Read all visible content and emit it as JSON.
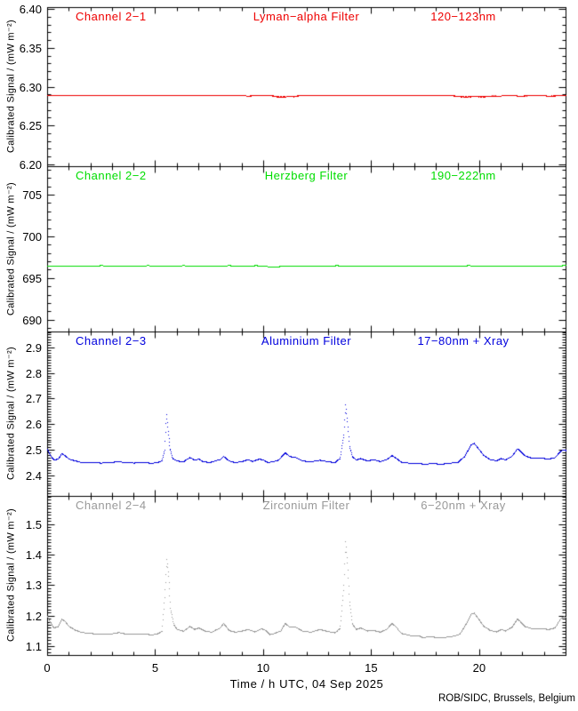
{
  "figure": {
    "background": "#ffffff",
    "axis_color": "#000000",
    "y_axis_label": "Calibrated Signal / (mW m⁻²)",
    "credit": "ROB/SIDC, Brussels, Belgium",
    "x_axis": {
      "label": "Time / h UTC, 04 Sep 2025",
      "xlim": [
        0,
        24
      ],
      "ticks": [
        0,
        5,
        10,
        15,
        20
      ],
      "tick_labels": [
        "0",
        "5",
        "10",
        "15",
        "20"
      ],
      "minor_step": 1
    }
  },
  "chart_data": [
    {
      "type": "line",
      "panel": 1,
      "channel": "Channel 2−1",
      "filter": "Lyman−alpha Filter",
      "band": "120−123nm",
      "color": "#ee0000",
      "ylim": [
        6.1975,
        6.4025
      ],
      "y_ticks": [
        6.4,
        6.35,
        6.3,
        6.25,
        6.2
      ],
      "y_tick_labels": [
        "6.40",
        "6.35",
        "6.30",
        "6.25",
        "6.20"
      ],
      "y_minor_step": 0.01,
      "noise_bands": [
        {
          "from": 9.2,
          "to": 9.5,
          "amp": 0.0009
        },
        {
          "from": 10.4,
          "to": 11.6,
          "amp": 0.0014
        },
        {
          "from": 18.8,
          "to": 21.0,
          "amp": 0.0013
        },
        {
          "from": 21.9,
          "to": 22.2,
          "amp": 0.0009
        },
        {
          "from": 23.2,
          "to": 23.5,
          "amp": 0.0009
        }
      ],
      "points": [
        [
          0,
          6.289
        ],
        [
          9.0,
          6.289
        ],
        [
          9.3,
          6.2885
        ],
        [
          9.6,
          6.289
        ],
        [
          10.4,
          6.289
        ],
        [
          10.8,
          6.2882
        ],
        [
          11.0,
          6.2878
        ],
        [
          11.3,
          6.2882
        ],
        [
          11.6,
          6.289
        ],
        [
          18.6,
          6.289
        ],
        [
          19.0,
          6.2885
        ],
        [
          19.6,
          6.288
        ],
        [
          20.2,
          6.2885
        ],
        [
          20.8,
          6.2888
        ],
        [
          21.9,
          6.2885
        ],
        [
          22.1,
          6.289
        ],
        [
          23.2,
          6.2885
        ],
        [
          23.5,
          6.289
        ],
        [
          24,
          6.289
        ]
      ]
    },
    {
      "type": "line",
      "panel": 2,
      "channel": "Channel 2−2",
      "filter": "Herzberg Filter",
      "band": "190−222nm",
      "color": "#00dd00",
      "ylim": [
        688.6,
        708.4
      ],
      "y_ticks": [
        705,
        700,
        695,
        690
      ],
      "y_tick_labels": [
        "705",
        "700",
        "695",
        "690"
      ],
      "y_minor_step": 1,
      "noise_bands": [],
      "points": [
        [
          0,
          696.5
        ],
        [
          2.4,
          696.5
        ],
        [
          2.5,
          696.58
        ],
        [
          2.6,
          696.5
        ],
        [
          4.55,
          696.5
        ],
        [
          4.65,
          696.6
        ],
        [
          4.75,
          696.5
        ],
        [
          6.2,
          696.5
        ],
        [
          6.3,
          696.58
        ],
        [
          6.4,
          696.5
        ],
        [
          8.3,
          696.5
        ],
        [
          8.4,
          696.58
        ],
        [
          8.5,
          696.5
        ],
        [
          9.55,
          696.5
        ],
        [
          9.65,
          696.6
        ],
        [
          9.75,
          696.5
        ],
        [
          10.15,
          696.48
        ],
        [
          10.25,
          696.35
        ],
        [
          10.45,
          696.32
        ],
        [
          10.7,
          696.35
        ],
        [
          10.8,
          696.48
        ],
        [
          10.9,
          696.5
        ],
        [
          13.3,
          696.5
        ],
        [
          13.4,
          696.58
        ],
        [
          13.5,
          696.5
        ],
        [
          16.5,
          696.5
        ],
        [
          19.4,
          696.5
        ],
        [
          19.5,
          696.58
        ],
        [
          19.6,
          696.5
        ],
        [
          22.0,
          696.5
        ],
        [
          23.8,
          696.5
        ],
        [
          23.9,
          696.62
        ],
        [
          24,
          696.55
        ]
      ]
    },
    {
      "type": "line",
      "panel": 3,
      "channel": "Channel 2−3",
      "filter": "Aluminium Filter",
      "band": "17−80nm + Xray",
      "color": "#0000dd",
      "ylim": [
        2.32,
        2.962
      ],
      "y_ticks": [
        2.9,
        2.8,
        2.7,
        2.6,
        2.5,
        2.4
      ],
      "y_tick_labels": [
        "2.9",
        "2.8",
        "2.7",
        "2.6",
        "2.5",
        "2.4"
      ],
      "y_minor_step": 0.01,
      "noise_bands": [],
      "points": [
        [
          0,
          2.505
        ],
        [
          0.15,
          2.478
        ],
        [
          0.3,
          2.462
        ],
        [
          0.5,
          2.466
        ],
        [
          0.65,
          2.487
        ],
        [
          0.8,
          2.48
        ],
        [
          1.0,
          2.465
        ],
        [
          1.3,
          2.458
        ],
        [
          1.6,
          2.452
        ],
        [
          2.0,
          2.451
        ],
        [
          2.5,
          2.45
        ],
        [
          3.0,
          2.452
        ],
        [
          3.3,
          2.457
        ],
        [
          3.5,
          2.452
        ],
        [
          4.0,
          2.45
        ],
        [
          4.5,
          2.452
        ],
        [
          4.8,
          2.449
        ],
        [
          5.1,
          2.452
        ],
        [
          5.3,
          2.459
        ],
        [
          5.42,
          2.5
        ],
        [
          5.5,
          2.638
        ],
        [
          5.58,
          2.575
        ],
        [
          5.68,
          2.505
        ],
        [
          5.8,
          2.468
        ],
        [
          6.0,
          2.458
        ],
        [
          6.3,
          2.455
        ],
        [
          6.6,
          2.472
        ],
        [
          6.8,
          2.461
        ],
        [
          7.0,
          2.466
        ],
        [
          7.2,
          2.456
        ],
        [
          7.5,
          2.452
        ],
        [
          8.0,
          2.464
        ],
        [
          8.15,
          2.476
        ],
        [
          8.4,
          2.458
        ],
        [
          8.7,
          2.452
        ],
        [
          9.0,
          2.456
        ],
        [
          9.3,
          2.463
        ],
        [
          9.5,
          2.456
        ],
        [
          9.8,
          2.466
        ],
        [
          10.0,
          2.462
        ],
        [
          10.2,
          2.452
        ],
        [
          10.45,
          2.456
        ],
        [
          10.7,
          2.461
        ],
        [
          11.0,
          2.49
        ],
        [
          11.2,
          2.476
        ],
        [
          11.5,
          2.471
        ],
        [
          11.8,
          2.458
        ],
        [
          12.2,
          2.455
        ],
        [
          12.6,
          2.461
        ],
        [
          13.0,
          2.455
        ],
        [
          13.3,
          2.452
        ],
        [
          13.55,
          2.468
        ],
        [
          13.72,
          2.56
        ],
        [
          13.8,
          2.676
        ],
        [
          13.88,
          2.61
        ],
        [
          13.98,
          2.515
        ],
        [
          14.1,
          2.476
        ],
        [
          14.3,
          2.462
        ],
        [
          14.5,
          2.468
        ],
        [
          14.8,
          2.458
        ],
        [
          15.1,
          2.463
        ],
        [
          15.4,
          2.456
        ],
        [
          15.7,
          2.463
        ],
        [
          15.95,
          2.479
        ],
        [
          16.1,
          2.47
        ],
        [
          16.4,
          2.453
        ],
        [
          16.8,
          2.449
        ],
        [
          17.2,
          2.448
        ],
        [
          17.5,
          2.445
        ],
        [
          17.8,
          2.449
        ],
        [
          18.2,
          2.445
        ],
        [
          18.6,
          2.449
        ],
        [
          19.0,
          2.453
        ],
        [
          19.3,
          2.474
        ],
        [
          19.6,
          2.52
        ],
        [
          19.75,
          2.528
        ],
        [
          19.9,
          2.512
        ],
        [
          20.2,
          2.479
        ],
        [
          20.5,
          2.463
        ],
        [
          20.8,
          2.459
        ],
        [
          21.0,
          2.468
        ],
        [
          21.2,
          2.462
        ],
        [
          21.5,
          2.476
        ],
        [
          21.75,
          2.506
        ],
        [
          21.9,
          2.496
        ],
        [
          22.1,
          2.479
        ],
        [
          22.4,
          2.469
        ],
        [
          22.8,
          2.469
        ],
        [
          23.2,
          2.466
        ],
        [
          23.5,
          2.471
        ],
        [
          23.75,
          2.496
        ],
        [
          23.9,
          2.502
        ],
        [
          24,
          2.498
        ]
      ]
    },
    {
      "type": "line",
      "panel": 4,
      "channel": "Channel 2−4",
      "filter": "Zirconium Filter",
      "band": "6−20nm + Xray",
      "color": "#999999",
      "ylim": [
        1.071,
        1.592
      ],
      "y_ticks": [
        1.5,
        1.4,
        1.3,
        1.2,
        1.1
      ],
      "y_tick_labels": [
        "1.5",
        "1.4",
        "1.3",
        "1.2",
        "1.1"
      ],
      "y_minor_step": 0.01,
      "noise_bands": [],
      "points": [
        [
          0,
          1.2
        ],
        [
          0.15,
          1.178
        ],
        [
          0.3,
          1.161
        ],
        [
          0.5,
          1.166
        ],
        [
          0.65,
          1.19
        ],
        [
          0.8,
          1.184
        ],
        [
          1.0,
          1.166
        ],
        [
          1.3,
          1.153
        ],
        [
          1.6,
          1.146
        ],
        [
          2.0,
          1.143
        ],
        [
          2.5,
          1.14
        ],
        [
          3.0,
          1.142
        ],
        [
          3.3,
          1.146
        ],
        [
          3.6,
          1.141
        ],
        [
          4.0,
          1.14
        ],
        [
          4.5,
          1.142
        ],
        [
          4.8,
          1.138
        ],
        [
          5.1,
          1.142
        ],
        [
          5.3,
          1.15
        ],
        [
          5.42,
          1.26
        ],
        [
          5.52,
          1.386
        ],
        [
          5.6,
          1.33
        ],
        [
          5.7,
          1.225
        ],
        [
          5.85,
          1.172
        ],
        [
          6.0,
          1.156
        ],
        [
          6.3,
          1.15
        ],
        [
          6.6,
          1.166
        ],
        [
          6.8,
          1.156
        ],
        [
          7.0,
          1.161
        ],
        [
          7.3,
          1.151
        ],
        [
          7.6,
          1.147
        ],
        [
          8.0,
          1.161
        ],
        [
          8.15,
          1.176
        ],
        [
          8.4,
          1.153
        ],
        [
          8.7,
          1.147
        ],
        [
          9.0,
          1.151
        ],
        [
          9.3,
          1.156
        ],
        [
          9.6,
          1.148
        ],
        [
          9.9,
          1.159
        ],
        [
          10.1,
          1.153
        ],
        [
          10.3,
          1.139
        ],
        [
          10.5,
          1.143
        ],
        [
          10.8,
          1.151
        ],
        [
          11.0,
          1.176
        ],
        [
          11.2,
          1.164
        ],
        [
          11.5,
          1.163
        ],
        [
          11.8,
          1.151
        ],
        [
          12.2,
          1.147
        ],
        [
          12.6,
          1.156
        ],
        [
          13.0,
          1.149
        ],
        [
          13.3,
          1.145
        ],
        [
          13.55,
          1.159
        ],
        [
          13.72,
          1.3
        ],
        [
          13.8,
          1.443
        ],
        [
          13.88,
          1.375
        ],
        [
          13.98,
          1.245
        ],
        [
          14.1,
          1.176
        ],
        [
          14.3,
          1.156
        ],
        [
          14.5,
          1.161
        ],
        [
          14.8,
          1.151
        ],
        [
          15.1,
          1.153
        ],
        [
          15.4,
          1.147
        ],
        [
          15.7,
          1.156
        ],
        [
          15.95,
          1.176
        ],
        [
          16.1,
          1.166
        ],
        [
          16.4,
          1.143
        ],
        [
          16.8,
          1.136
        ],
        [
          17.2,
          1.135
        ],
        [
          17.4,
          1.128
        ],
        [
          17.6,
          1.133
        ],
        [
          18.0,
          1.13
        ],
        [
          18.4,
          1.13
        ],
        [
          18.8,
          1.134
        ],
        [
          19.1,
          1.141
        ],
        [
          19.35,
          1.17
        ],
        [
          19.6,
          1.206
        ],
        [
          19.75,
          1.21
        ],
        [
          19.9,
          1.196
        ],
        [
          20.2,
          1.166
        ],
        [
          20.5,
          1.153
        ],
        [
          20.8,
          1.148
        ],
        [
          21.0,
          1.156
        ],
        [
          21.2,
          1.151
        ],
        [
          21.5,
          1.163
        ],
        [
          21.75,
          1.19
        ],
        [
          21.9,
          1.181
        ],
        [
          22.1,
          1.166
        ],
        [
          22.4,
          1.159
        ],
        [
          22.8,
          1.159
        ],
        [
          23.2,
          1.156
        ],
        [
          23.5,
          1.161
        ],
        [
          23.75,
          1.191
        ],
        [
          23.9,
          1.198
        ],
        [
          24,
          1.195
        ]
      ]
    }
  ]
}
